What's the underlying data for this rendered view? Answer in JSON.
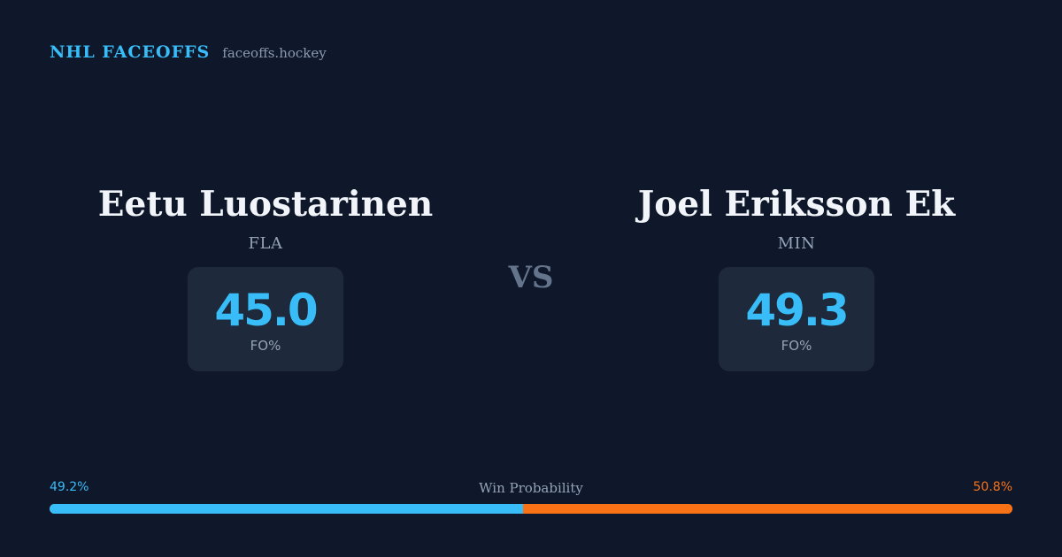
{
  "header": {
    "brand": "NHL FACEOFFS",
    "domain": "faceoffs.hockey"
  },
  "players": [
    {
      "name": "Eetu Luostarinen",
      "team": "FLA",
      "stat_value": "45.0",
      "stat_label": "FO%"
    },
    {
      "name": "Joel Eriksson Ek",
      "team": "MIN",
      "stat_value": "49.3",
      "stat_label": "FO%"
    }
  ],
  "vs_label": "VS",
  "win_probability": {
    "title": "Win Probability",
    "left_label": "49.2%",
    "right_label": "50.8%",
    "left_value": 49.2,
    "right_value": 50.8
  },
  "colors": {
    "background": "#0f172a",
    "accent_left": "#38bdf8",
    "accent_right": "#f97316",
    "card": "#1e293b"
  }
}
